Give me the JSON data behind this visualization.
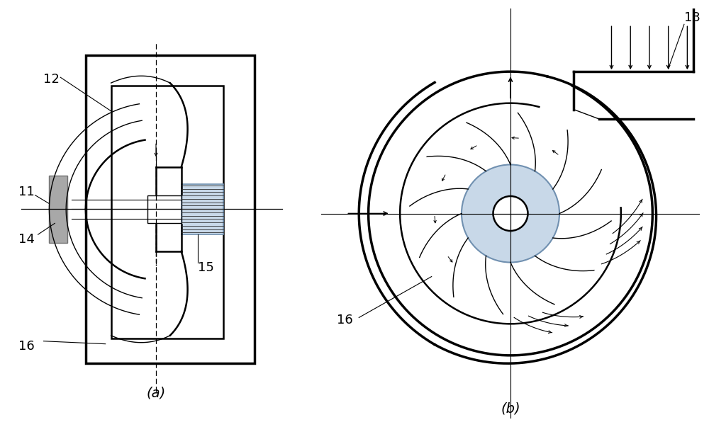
{
  "bg_color": "#ffffff",
  "line_color": "#000000",
  "blue_fill": "#c8d8e8",
  "gray_fill": "#a8a8a8",
  "blue_stroke": "#7090b0",
  "fontsize_label": 13,
  "fontsize_caption": 14
}
